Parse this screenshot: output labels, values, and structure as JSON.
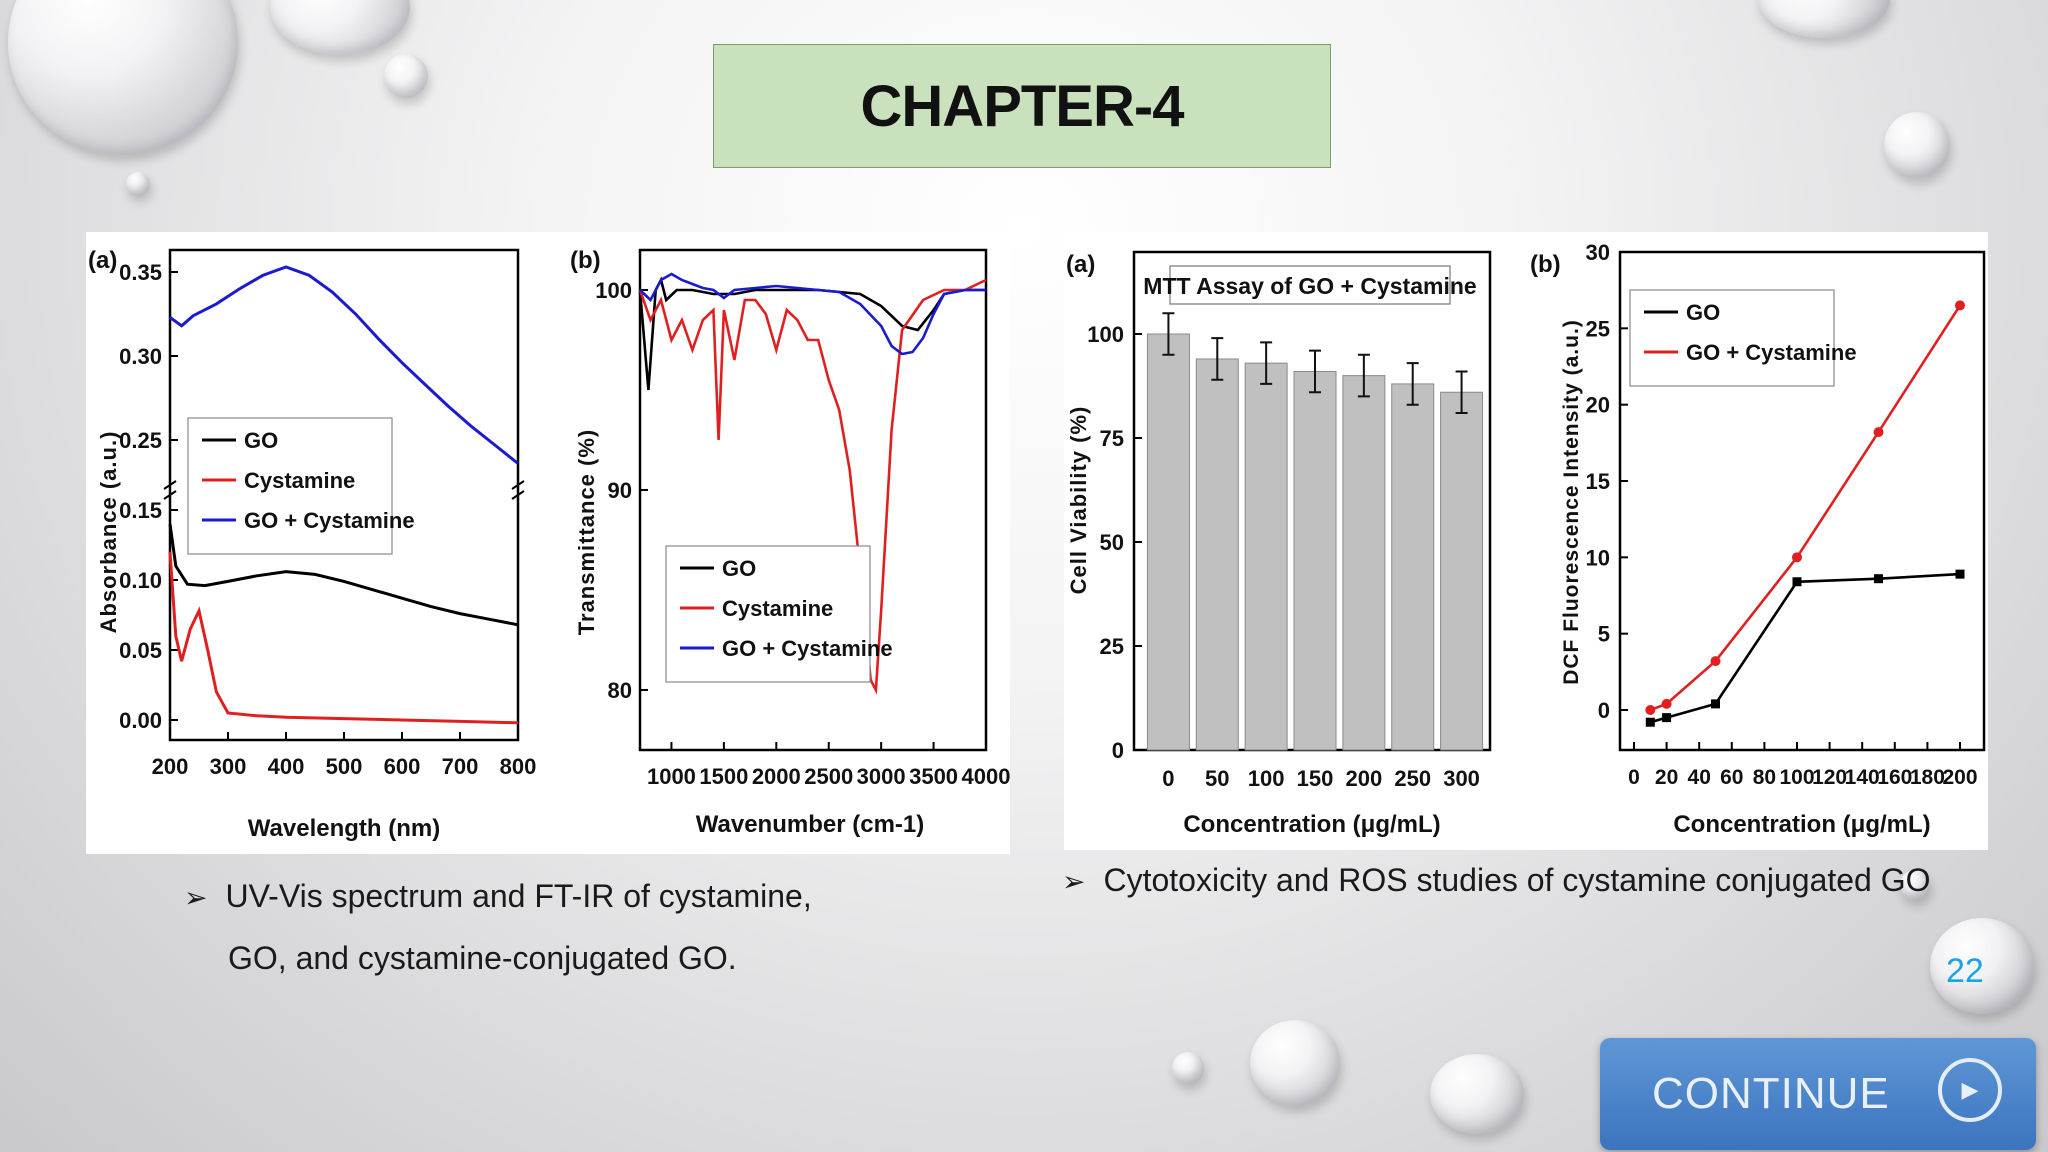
{
  "slide": {
    "title": "CHAPTER-4",
    "bullet_left_line1": "UV-Vis spectrum and FT-IR of cystamine,",
    "bullet_left_line2": "GO, and cystamine-conjugated GO.",
    "bullet_right": "Cytotoxicity and ROS studies of cystamine conjugated GO",
    "bullet_marker": "➢",
    "page_number": "22",
    "continue_label": "CONTINUE",
    "continue_icon": "play-triangle-icon"
  },
  "chart_data": [
    {
      "type": "line",
      "panel_label": "(a)",
      "xlabel": "Wavelength (nm)",
      "ylabel": "Absorbance (a.u.)",
      "xlim": [
        200,
        800
      ],
      "ylim_lower": [
        0.0,
        0.15
      ],
      "ylim_upper": [
        0.25,
        0.35
      ],
      "broken_axis": true,
      "x_ticks": [
        "200",
        "300",
        "400",
        "500",
        "600",
        "700",
        "800"
      ],
      "y_ticks": [
        "0.00",
        "0.05",
        "0.10",
        "0.15",
        "0.25",
        "0.30",
        "0.35"
      ],
      "legend": [
        "GO",
        "Cystamine",
        "GO + Cystamine"
      ],
      "colors": [
        "#000000",
        "#e02020",
        "#1a1ad0"
      ],
      "series": [
        {
          "name": "GO",
          "x": [
            200,
            210,
            230,
            260,
            300,
            350,
            400,
            450,
            500,
            550,
            600,
            650,
            700,
            750,
            800
          ],
          "y": [
            0.14,
            0.11,
            0.097,
            0.096,
            0.099,
            0.103,
            0.106,
            0.104,
            0.099,
            0.093,
            0.087,
            0.081,
            0.076,
            0.072,
            0.068
          ]
        },
        {
          "name": "Cystamine",
          "x": [
            200,
            210,
            220,
            235,
            250,
            265,
            280,
            300,
            350,
            400,
            500,
            600,
            700,
            800
          ],
          "y": [
            0.12,
            0.06,
            0.042,
            0.065,
            0.078,
            0.05,
            0.02,
            0.005,
            0.003,
            0.002,
            0.001,
            0.0,
            -0.001,
            -0.002
          ]
        },
        {
          "name": "GO + Cystamine",
          "x": [
            200,
            220,
            240,
            280,
            320,
            360,
            400,
            440,
            480,
            520,
            560,
            600,
            640,
            680,
            720,
            760,
            800
          ],
          "y": [
            0.323,
            0.318,
            0.324,
            0.331,
            0.34,
            0.348,
            0.353,
            0.348,
            0.338,
            0.325,
            0.31,
            0.296,
            0.283,
            0.27,
            0.258,
            0.247,
            0.236
          ]
        }
      ]
    },
    {
      "type": "line",
      "panel_label": "(b)",
      "xlabel": "Wavenumber (cm-1)",
      "ylabel": "Transmittance (%)",
      "xlim": [
        700,
        4000
      ],
      "ylim": [
        77,
        102
      ],
      "x_ticks": [
        "1000",
        "1500",
        "2000",
        "2500",
        "3000",
        "3500",
        "4000"
      ],
      "y_ticks": [
        "80",
        "90",
        "100"
      ],
      "legend": [
        "GO",
        "Cystamine",
        "GO + Cystamine"
      ],
      "colors": [
        "#000000",
        "#e02020",
        "#1a1ad0"
      ],
      "series": [
        {
          "name": "GO",
          "x": [
            700,
            780,
            850,
            900,
            950,
            1050,
            1200,
            1400,
            1600,
            1800,
            2000,
            2400,
            2800,
            3000,
            3200,
            3350,
            3500,
            3600,
            3800,
            4000
          ],
          "y": [
            100,
            95,
            100,
            100.5,
            99.5,
            100,
            100,
            99.8,
            99.8,
            100,
            100,
            100,
            99.8,
            99.2,
            98.2,
            98.0,
            99.0,
            99.8,
            100,
            100
          ]
        },
        {
          "name": "Cystamine",
          "x": [
            700,
            800,
            900,
            1000,
            1100,
            1200,
            1300,
            1400,
            1450,
            1500,
            1600,
            1700,
            1800,
            1900,
            2000,
            2100,
            2200,
            2300,
            2400,
            2500,
            2600,
            2700,
            2800,
            2900,
            2950,
            3000,
            3100,
            3200,
            3400,
            3600,
            3800,
            4000
          ],
          "y": [
            100,
            98.5,
            99.5,
            97.5,
            98.5,
            97.0,
            98.5,
            99,
            92.5,
            99,
            96.5,
            99.5,
            99.5,
            98.8,
            97.0,
            99,
            98.5,
            97.5,
            97.5,
            95.5,
            94,
            91,
            86,
            80.5,
            80,
            84,
            93,
            98,
            99.5,
            100,
            100,
            100.5
          ]
        },
        {
          "name": "GO + Cystamine",
          "x": [
            700,
            800,
            900,
            1000,
            1100,
            1200,
            1300,
            1400,
            1500,
            1600,
            1800,
            2000,
            2200,
            2400,
            2600,
            2800,
            3000,
            3100,
            3200,
            3300,
            3400,
            3500,
            3600,
            3800,
            4000
          ],
          "y": [
            100,
            99.5,
            100.5,
            100.8,
            100.5,
            100.3,
            100.1,
            100,
            99.6,
            100,
            100.1,
            100.2,
            100.1,
            100,
            99.9,
            99.3,
            98.2,
            97.2,
            96.8,
            96.9,
            97.6,
            98.8,
            99.8,
            100,
            100
          ]
        }
      ]
    },
    {
      "type": "bar",
      "panel_label": "(a)",
      "title": "MTT Assay of GO + Cystamine",
      "xlabel": "Concentration (μg/mL)",
      "ylabel": "Cell Viability (%)",
      "ylim": [
        0,
        120
      ],
      "categories": [
        "0",
        "50",
        "100",
        "150",
        "200",
        "250",
        "300"
      ],
      "values": [
        100,
        94,
        93,
        91,
        90,
        88,
        86
      ],
      "errors": [
        5,
        5,
        5,
        5,
        5,
        5,
        5
      ],
      "y_ticks": [
        "0",
        "25",
        "50",
        "75",
        "100"
      ],
      "bar_color": "#c0c0c0"
    },
    {
      "type": "line",
      "panel_label": "(b)",
      "xlabel": "Concentration (μg/mL)",
      "ylabel": "DCF Fluorescence Intensity (a.u.)",
      "xlim": [
        0,
        210
      ],
      "ylim": [
        -2,
        30
      ],
      "x_ticks": [
        "0",
        "20",
        "40",
        "60",
        "80",
        "100",
        "120",
        "140",
        "160",
        "180",
        "200"
      ],
      "y_ticks": [
        "0",
        "5",
        "10",
        "15",
        "20",
        "25",
        "30"
      ],
      "legend": [
        "GO",
        "GO + Cystamine"
      ],
      "colors": [
        "#000000",
        "#e02020"
      ],
      "series": [
        {
          "name": "GO",
          "x": [
            10,
            20,
            50,
            100,
            150,
            200
          ],
          "y": [
            -0.8,
            -0.5,
            0.4,
            8.4,
            8.6,
            8.9
          ]
        },
        {
          "name": "GO + Cystamine",
          "x": [
            10,
            20,
            50,
            100,
            150,
            200
          ],
          "y": [
            0.0,
            0.4,
            3.2,
            10.0,
            18.2,
            26.5
          ]
        }
      ]
    }
  ]
}
